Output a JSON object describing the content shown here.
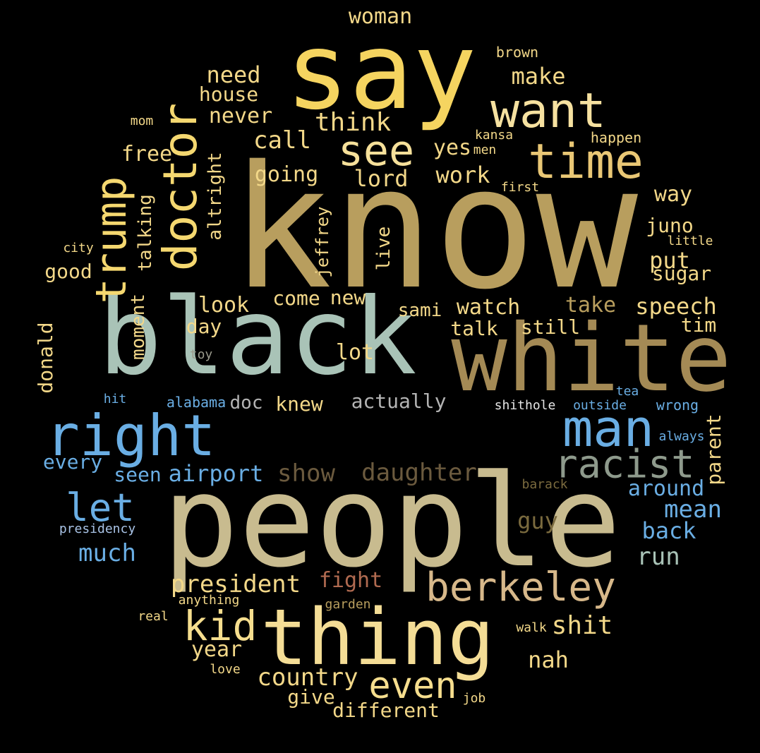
{
  "words": [
    {
      "id": "know",
      "text": "know",
      "color": "#b89e5e"
    },
    {
      "id": "black",
      "text": "black",
      "color": "#a9c3b7"
    },
    {
      "id": "people",
      "text": "people",
      "color": "#c8bb8f"
    },
    {
      "id": "white",
      "text": "white",
      "color": "#a48a55"
    },
    {
      "id": "say",
      "text": "say",
      "color": "#f5d460"
    },
    {
      "id": "thing",
      "text": "thing",
      "color": "#f4dd96"
    },
    {
      "id": "right",
      "text": "right",
      "color": "#6aaee4"
    },
    {
      "id": "man",
      "text": "man",
      "color": "#6aaee4"
    },
    {
      "id": "want",
      "text": "want",
      "color": "#f6e1a0"
    },
    {
      "id": "time",
      "text": "time",
      "color": "#e9c775"
    },
    {
      "id": "see",
      "text": "see",
      "color": "#f6e09a"
    },
    {
      "id": "doctor",
      "text": "doctor",
      "color": "#f5d870"
    },
    {
      "id": "trump",
      "text": "trump",
      "color": "#f5d870"
    },
    {
      "id": "berkeley",
      "text": "berkeley",
      "color": "#d7b88a"
    },
    {
      "id": "racist",
      "text": "racist",
      "color": "#8e9a8c"
    },
    {
      "id": "kid",
      "text": "kid",
      "color": "#f6de8e"
    },
    {
      "id": "even",
      "text": "even",
      "color": "#f6de8e"
    },
    {
      "id": "let",
      "text": "let",
      "color": "#6aaee4"
    },
    {
      "id": "woman",
      "text": "woman",
      "color": "#f3d889"
    },
    {
      "id": "brown",
      "text": "brown",
      "color": "#f3d889"
    },
    {
      "id": "need",
      "text": "need",
      "color": "#f3d889"
    },
    {
      "id": "make",
      "text": "make",
      "color": "#f3d889"
    },
    {
      "id": "house",
      "text": "house",
      "color": "#f3d889"
    },
    {
      "id": "never",
      "text": "never",
      "color": "#f3d889"
    },
    {
      "id": "think",
      "text": "think",
      "color": "#f3d889"
    },
    {
      "id": "mom",
      "text": "mom",
      "color": "#f3d889"
    },
    {
      "id": "kansa",
      "text": "kansa",
      "color": "#f3d889"
    },
    {
      "id": "happen",
      "text": "happen",
      "color": "#f3d889"
    },
    {
      "id": "call",
      "text": "call",
      "color": "#f3d889"
    },
    {
      "id": "yes",
      "text": "yes",
      "color": "#f3d889"
    },
    {
      "id": "men",
      "text": "men",
      "color": "#f3d889"
    },
    {
      "id": "free",
      "text": "free",
      "color": "#f3d889"
    },
    {
      "id": "altright",
      "text": "altright",
      "color": "#f3d889"
    },
    {
      "id": "going",
      "text": "going",
      "color": "#f3d889"
    },
    {
      "id": "lord",
      "text": "lord",
      "color": "#f3d889"
    },
    {
      "id": "work",
      "text": "work",
      "color": "#f3d889"
    },
    {
      "id": "first",
      "text": "first",
      "color": "#f3d889"
    },
    {
      "id": "way",
      "text": "way",
      "color": "#f3d889"
    },
    {
      "id": "talking",
      "text": "talking",
      "color": "#f3d889"
    },
    {
      "id": "jeffrey",
      "text": "jeffrey",
      "color": "#f3d889"
    },
    {
      "id": "live",
      "text": "live",
      "color": "#f3d889"
    },
    {
      "id": "juno",
      "text": "juno",
      "color": "#f3d889"
    },
    {
      "id": "little",
      "text": "little",
      "color": "#f3d889"
    },
    {
      "id": "city",
      "text": "city",
      "color": "#f3d889"
    },
    {
      "id": "put",
      "text": "put",
      "color": "#f3d889"
    },
    {
      "id": "good",
      "text": "good",
      "color": "#f3d889"
    },
    {
      "id": "sugar",
      "text": "sugar",
      "color": "#f3d889"
    },
    {
      "id": "moment",
      "text": "moment",
      "color": "#f3d889"
    },
    {
      "id": "look",
      "text": "look",
      "color": "#f3d889"
    },
    {
      "id": "come",
      "text": "come",
      "color": "#f3d889"
    },
    {
      "id": "new",
      "text": "new",
      "color": "#f3d889"
    },
    {
      "id": "take",
      "text": "take",
      "color": "#b89e5e"
    },
    {
      "id": "speech",
      "text": "speech",
      "color": "#f3d889"
    },
    {
      "id": "sami",
      "text": "sami",
      "color": "#f3d889"
    },
    {
      "id": "watch",
      "text": "watch",
      "color": "#f3d889"
    },
    {
      "id": "donald",
      "text": "donald",
      "color": "#f3d889"
    },
    {
      "id": "day",
      "text": "day",
      "color": "#f3d889"
    },
    {
      "id": "talk",
      "text": "talk",
      "color": "#f3d889"
    },
    {
      "id": "still",
      "text": "still",
      "color": "#f3d889"
    },
    {
      "id": "tim",
      "text": "tim",
      "color": "#f3d889"
    },
    {
      "id": "toy",
      "text": "toy",
      "color": "#9a9a8c"
    },
    {
      "id": "lot",
      "text": "lot",
      "color": "#f3d889"
    },
    {
      "id": "tea",
      "text": "tea",
      "color": "#6aaee4"
    },
    {
      "id": "hit",
      "text": "hit",
      "color": "#6aaee4"
    },
    {
      "id": "alabama",
      "text": "alabama",
      "color": "#6aaee4"
    },
    {
      "id": "doc",
      "text": "doc",
      "color": "#b4b4b4"
    },
    {
      "id": "knew",
      "text": "knew",
      "color": "#f3d889"
    },
    {
      "id": "actually",
      "text": "actually",
      "color": "#b4b4b4"
    },
    {
      "id": "shithole",
      "text": "shithole",
      "color": "#e6e6e6"
    },
    {
      "id": "outside",
      "text": "outside",
      "color": "#6aaee4"
    },
    {
      "id": "wrong",
      "text": "wrong",
      "color": "#6aaee4"
    },
    {
      "id": "parent",
      "text": "parent",
      "color": "#f3d889"
    },
    {
      "id": "always",
      "text": "always",
      "color": "#6aaee4"
    },
    {
      "id": "every",
      "text": "every",
      "color": "#6aaee4"
    },
    {
      "id": "seen",
      "text": "seen",
      "color": "#6aaee4"
    },
    {
      "id": "airport",
      "text": "airport",
      "color": "#6aaee4"
    },
    {
      "id": "show",
      "text": "show",
      "color": "#6b5a3e"
    },
    {
      "id": "daughter",
      "text": "daughter",
      "color": "#6b5a3e"
    },
    {
      "id": "barack",
      "text": "barack",
      "color": "#7a6a3e"
    },
    {
      "id": "around",
      "text": "around",
      "color": "#6aaee4"
    },
    {
      "id": "mean",
      "text": "mean",
      "color": "#6aaee4"
    },
    {
      "id": "guy",
      "text": "guy",
      "color": "#7a6a3e"
    },
    {
      "id": "presidency",
      "text": "presidency",
      "color": "#a9c3e6"
    },
    {
      "id": "back",
      "text": "back",
      "color": "#6aaee4"
    },
    {
      "id": "much",
      "text": "much",
      "color": "#6aaee4"
    },
    {
      "id": "run",
      "text": "run",
      "color": "#a9c3b7"
    },
    {
      "id": "president",
      "text": "president",
      "color": "#f3d889"
    },
    {
      "id": "fight",
      "text": "fight",
      "color": "#b06a50"
    },
    {
      "id": "anything",
      "text": "anything",
      "color": "#f3d889"
    },
    {
      "id": "garden",
      "text": "garden",
      "color": "#b89e5e"
    },
    {
      "id": "real",
      "text": "real",
      "color": "#f3d889"
    },
    {
      "id": "walk",
      "text": "walk",
      "color": "#f3d889"
    },
    {
      "id": "shit",
      "text": "shit",
      "color": "#f3d889"
    },
    {
      "id": "year",
      "text": "year",
      "color": "#f3d889"
    },
    {
      "id": "nah",
      "text": "nah",
      "color": "#f3d889"
    },
    {
      "id": "love",
      "text": "love",
      "color": "#f3d889"
    },
    {
      "id": "country",
      "text": "country",
      "color": "#f3d889"
    },
    {
      "id": "give",
      "text": "give",
      "color": "#f3d889"
    },
    {
      "id": "job",
      "text": "job",
      "color": "#f3d889"
    },
    {
      "id": "different",
      "text": "different",
      "color": "#f3d889"
    }
  ]
}
